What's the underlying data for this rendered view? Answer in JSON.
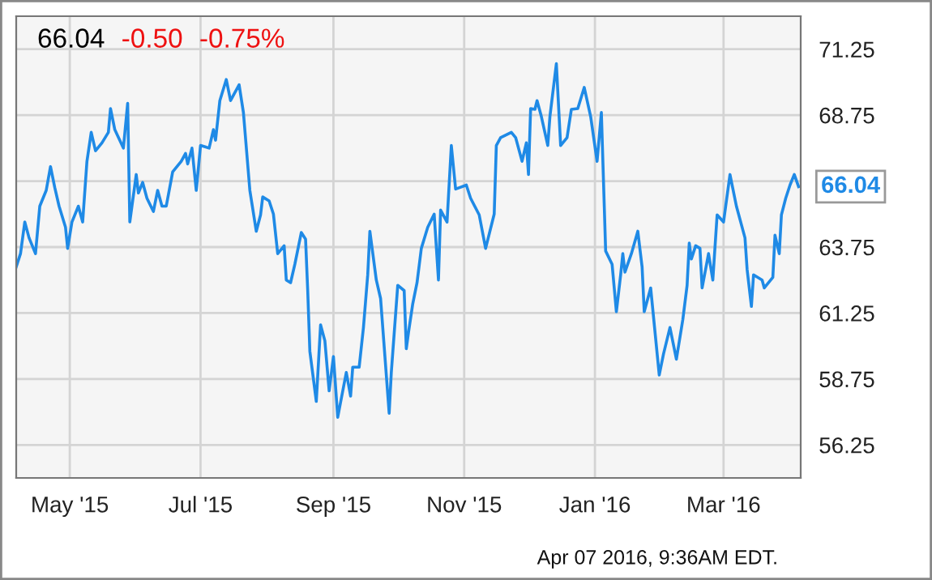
{
  "chart_data": {
    "type": "line",
    "annotations": [
      "66.04",
      "-0.50",
      "-0.75%",
      {
        "text": "66.04",
        "x": "2016-04-05",
        "y": 66.04
      },
      "Apr 07 2016, 9:36AM EDT."
    ],
    "x": [
      "2015-04-06",
      "2015-04-08",
      "2015-04-10",
      "2015-04-12",
      "2015-04-15",
      "2015-04-17",
      "2015-04-20",
      "2015-04-22",
      "2015-04-24",
      "2015-04-26",
      "2015-04-29",
      "2015-04-30",
      "2015-05-02",
      "2015-05-05",
      "2015-05-07",
      "2015-05-09",
      "2015-05-11",
      "2015-05-13",
      "2015-05-16",
      "2015-05-19",
      "2015-05-20",
      "2015-05-22",
      "2015-05-26",
      "2015-05-28",
      "2015-05-29",
      "2015-06-01",
      "2015-06-02",
      "2015-06-04",
      "2015-06-06",
      "2015-06-09",
      "2015-06-11",
      "2015-06-13",
      "2015-06-15",
      "2015-06-18",
      "2015-06-22",
      "2015-06-24",
      "2015-06-25",
      "2015-06-27",
      "2015-06-29",
      "2015-07-01",
      "2015-07-05",
      "2015-07-07",
      "2015-07-08",
      "2015-07-10",
      "2015-07-13",
      "2015-07-15",
      "2015-07-19",
      "2015-07-21",
      "2015-07-24",
      "2015-07-27",
      "2015-07-29",
      "2015-07-30",
      "2015-08-02",
      "2015-08-04",
      "2015-08-06",
      "2015-08-09",
      "2015-08-10",
      "2015-08-12",
      "2015-08-14",
      "2015-08-17",
      "2015-08-19",
      "2015-08-20",
      "2015-08-21",
      "2015-08-24",
      "2015-08-26",
      "2015-08-28",
      "2015-08-30",
      "2015-09-01",
      "2015-09-03",
      "2015-09-07",
      "2015-09-09",
      "2015-09-10",
      "2015-09-13",
      "2015-09-15",
      "2015-09-17",
      "2015-09-18",
      "2015-09-21",
      "2015-09-23",
      "2015-09-27",
      "2015-09-28",
      "2015-10-01",
      "2015-10-04",
      "2015-10-05",
      "2015-10-06",
      "2015-10-08",
      "2015-10-10",
      "2015-10-12",
      "2015-10-15",
      "2015-10-18",
      "2015-10-20",
      "2015-10-21",
      "2015-10-24",
      "2015-10-26",
      "2015-10-28",
      "2015-11-02",
      "2015-11-04",
      "2015-11-08",
      "2015-11-11",
      "2015-11-15",
      "2015-11-16",
      "2015-11-18",
      "2015-11-23",
      "2015-11-25",
      "2015-11-28",
      "2015-11-30",
      "2015-12-01",
      "2015-12-02",
      "2015-12-04",
      "2015-12-05",
      "2015-12-07",
      "2015-12-10",
      "2015-12-11",
      "2015-12-14",
      "2015-12-16",
      "2015-12-19",
      "2015-12-21",
      "2015-12-24",
      "2015-12-27",
      "2015-12-30",
      "2016-01-02",
      "2016-01-04",
      "2016-01-06",
      "2016-01-09",
      "2016-01-11",
      "2016-01-13",
      "2016-01-14",
      "2016-01-15",
      "2016-01-18",
      "2016-01-21",
      "2016-01-23",
      "2016-01-24",
      "2016-01-27",
      "2016-01-31",
      "2016-02-02",
      "2016-02-05",
      "2016-02-08",
      "2016-02-11",
      "2016-02-13",
      "2016-02-14",
      "2016-02-15",
      "2016-02-17",
      "2016-02-19",
      "2016-02-20",
      "2016-02-23",
      "2016-02-25",
      "2016-02-27",
      "2016-03-01",
      "2016-03-04",
      "2016-03-07",
      "2016-03-11",
      "2016-03-12",
      "2016-03-14",
      "2016-03-15",
      "2016-03-19",
      "2016-03-20",
      "2016-03-24",
      "2016-03-25",
      "2016-03-27",
      "2016-03-28",
      "2016-03-30",
      "2016-04-01",
      "2016-04-03",
      "2016-04-05"
    ],
    "series": [
      {
        "color": "#1f8ae6",
        "values": [
          63.0,
          63.5,
          64.7,
          64.1,
          63.5,
          65.3,
          65.9,
          66.8,
          66.0,
          65.3,
          64.5,
          63.7,
          64.7,
          65.3,
          64.7,
          67.0,
          68.1,
          67.4,
          67.7,
          68.1,
          69.0,
          68.2,
          67.5,
          69.2,
          64.7,
          66.5,
          65.8,
          66.2,
          65.6,
          65.1,
          65.9,
          65.3,
          65.3,
          66.6,
          67.0,
          67.3,
          66.9,
          67.5,
          65.9,
          67.6,
          67.5,
          68.2,
          67.8,
          69.3,
          70.1,
          69.3,
          69.9,
          68.85,
          65.9,
          64.35,
          64.97,
          65.65,
          65.5,
          65.0,
          63.5,
          63.8,
          62.5,
          62.4,
          63.1,
          64.3,
          64.05,
          62.1,
          59.8,
          57.9,
          60.8,
          60.2,
          58.3,
          59.6,
          57.3,
          59.0,
          58.1,
          59.2,
          59.2,
          60.7,
          62.7,
          64.35,
          62.5,
          61.8,
          57.45,
          59.0,
          62.3,
          62.1,
          59.9,
          60.5,
          61.6,
          62.4,
          63.7,
          64.5,
          65.0,
          62.5,
          65.15,
          64.7,
          67.6,
          65.95,
          66.1,
          65.6,
          64.97,
          63.7,
          65.0,
          67.6,
          67.9,
          68.1,
          67.9,
          67.0,
          67.7,
          66.5,
          69.0,
          68.97,
          69.3,
          68.7,
          67.6,
          68.7,
          70.7,
          67.6,
          67.9,
          68.97,
          69.0,
          69.8,
          68.7,
          67.0,
          68.85,
          63.6,
          63.1,
          61.3,
          62.7,
          63.5,
          62.8,
          63.5,
          64.35,
          63.0,
          61.3,
          62.2,
          58.9,
          59.7,
          60.7,
          59.5,
          61.0,
          62.3,
          63.9,
          63.3,
          63.8,
          63.7,
          62.2,
          63.5,
          62.5,
          64.97,
          64.7,
          66.5,
          65.3,
          64.1,
          62.9,
          61.5,
          62.7,
          62.5,
          62.2,
          62.6,
          64.2,
          63.5,
          64.97,
          65.6,
          66.1,
          66.5,
          66.04
        ]
      }
    ],
    "xlim": [
      "2015-04-06",
      "2016-04-06"
    ],
    "xticks": [
      {
        "value": "2015-05-01",
        "label": "May '15"
      },
      {
        "value": "2015-07-01",
        "label": "Jul '15"
      },
      {
        "value": "2015-09-01",
        "label": "Sep '15"
      },
      {
        "value": "2015-11-01",
        "label": "Nov '15"
      },
      {
        "value": "2016-01-01",
        "label": "Jan '16"
      },
      {
        "value": "2016-03-01",
        "label": "Mar '16"
      }
    ],
    "ylim": [
      55,
      72.5
    ],
    "yticks": [
      {
        "value": 56.25,
        "label": "56.25"
      },
      {
        "value": 58.75,
        "label": "58.75"
      },
      {
        "value": 61.25,
        "label": "61.25"
      },
      {
        "value": 63.75,
        "label": "63.75"
      },
      {
        "value": 66.25,
        "label": null
      },
      {
        "value": 68.75,
        "label": "68.75"
      },
      {
        "value": 71.25,
        "label": "71.25"
      }
    ],
    "grid": true,
    "legend": false,
    "marker": "none",
    "line_style": "solid"
  }
}
